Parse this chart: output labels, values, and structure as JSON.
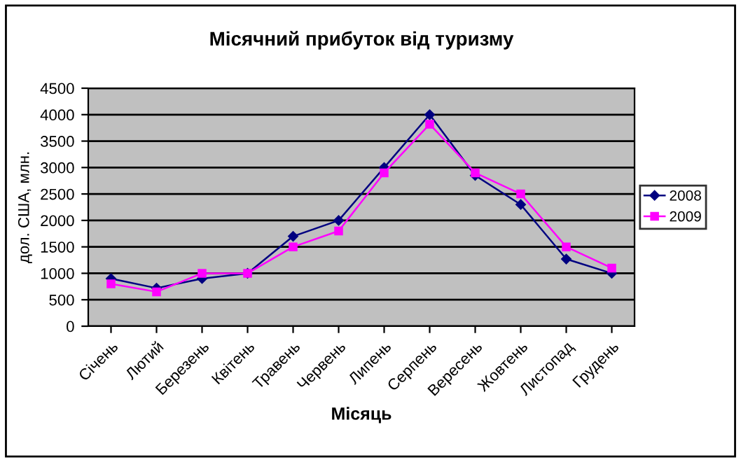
{
  "chart_data": {
    "type": "line",
    "title": "Місячний прибуток від туризму",
    "xlabel": "Місяць",
    "ylabel": "дол. США, млн.",
    "categories": [
      "Січень",
      "Лютий",
      "Березень",
      "Квітень",
      "Травень",
      "Червень",
      "Липень",
      "Серпень",
      "Вересень",
      "Жовтень",
      "Листопад",
      "Грудень"
    ],
    "series": [
      {
        "name": "2008",
        "color": "#000080",
        "marker": "diamond",
        "values": [
          900,
          720,
          900,
          1000,
          1700,
          2000,
          3000,
          4000,
          2850,
          2300,
          1270,
          1000
        ]
      },
      {
        "name": "2009",
        "color": "#ff00ff",
        "marker": "square",
        "values": [
          800,
          650,
          1000,
          1000,
          1500,
          1800,
          2900,
          3820,
          2900,
          2500,
          1500,
          1100
        ]
      }
    ],
    "ylim": [
      0,
      4500
    ],
    "yticks": [
      0,
      500,
      1000,
      1500,
      2000,
      2500,
      3000,
      3500,
      4000,
      4500
    ],
    "grid": "y",
    "legend": "right"
  }
}
